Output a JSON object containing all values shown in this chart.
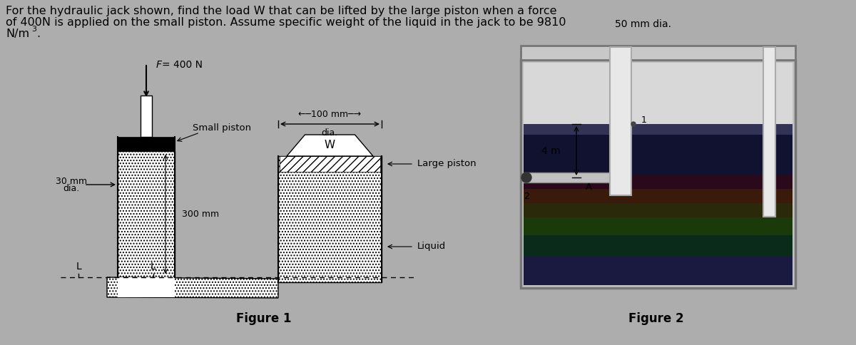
{
  "bg_color": "#adadad",
  "text_color": "#000000",
  "title_line1": "For the hydraulic jack shown, find the load W that can be lifted by the large piston when a force",
  "title_line2": "of 400N is applied on the small piston. Assume specific weight of the liquid in the jack to be 9810",
  "title_line3": "N/m³.",
  "fig1_caption": "Figure 1",
  "fig2_caption": "Figure 2",
  "force_label": "F = 400 N",
  "small_piston_label": "Small piston",
  "dia30_label1": "30 mm",
  "dia30_label2": "dia.",
  "dim300_label": "300 mm",
  "dim100_label": "←─100 mm─→",
  "dia100_label": "dia.",
  "W_label": "W",
  "L_label": "L",
  "large_piston_label": "Large piston",
  "liquid_label": "Liquid",
  "dia50_label": "50 mm dia.",
  "dim4m_label": "4 m",
  "A_label": "A",
  "label1": "1",
  "label2": "2"
}
